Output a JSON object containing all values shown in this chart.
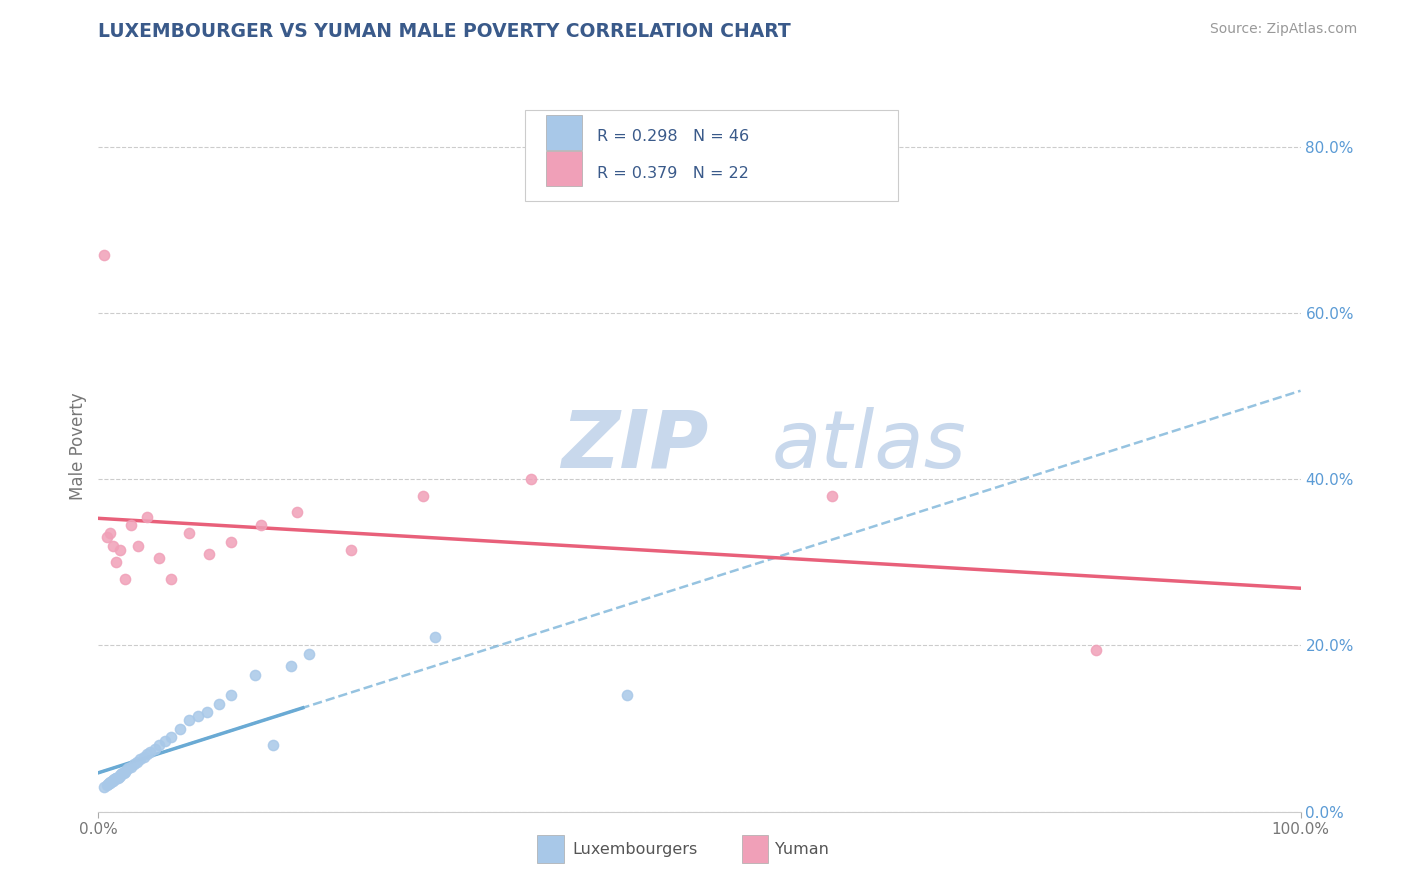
{
  "title": "LUXEMBOURGER VS YUMAN MALE POVERTY CORRELATION CHART",
  "source": "Source: ZipAtlas.com",
  "ylabel": "Male Poverty",
  "legend_labels": [
    "Luxembourgers",
    "Yuman"
  ],
  "r_luxembourger": 0.298,
  "n_luxembourger": 46,
  "r_yuman": 0.379,
  "n_yuman": 22,
  "color_luxembourger": "#a8c8e8",
  "color_yuman": "#f0a0b8",
  "color_line_luxembourger": "#6aaad4",
  "color_line_yuman": "#e8607a",
  "title_color": "#3a5a8a",
  "legend_text_color": "#3a5a8a",
  "right_axis_color": "#5b9bd5",
  "watermark_zip_color": "#c8d8ec",
  "watermark_atlas_color": "#c8d8ec",
  "background_color": "#ffffff",
  "yticks_right": [
    0.0,
    0.2,
    0.4,
    0.6,
    0.8
  ],
  "ytick_labels_right": [
    "0.0%",
    "20.0%",
    "40.0%",
    "60.0%",
    "80.0%"
  ],
  "xlim": [
    0.0,
    1.0
  ],
  "ylim": [
    0.0,
    0.88
  ],
  "lux_x": [
    0.005,
    0.007,
    0.008,
    0.009,
    0.01,
    0.01,
    0.011,
    0.012,
    0.012,
    0.013,
    0.014,
    0.015,
    0.015,
    0.016,
    0.017,
    0.018,
    0.018,
    0.019,
    0.02,
    0.021,
    0.022,
    0.023,
    0.025,
    0.027,
    0.03,
    0.032,
    0.035,
    0.038,
    0.04,
    0.043,
    0.047,
    0.05,
    0.055,
    0.06,
    0.068,
    0.075,
    0.083,
    0.09,
    0.1,
    0.11,
    0.13,
    0.145,
    0.16,
    0.175,
    0.28,
    0.44
  ],
  "lux_y": [
    0.03,
    0.032,
    0.033,
    0.034,
    0.035,
    0.036,
    0.037,
    0.037,
    0.038,
    0.039,
    0.039,
    0.04,
    0.04,
    0.041,
    0.042,
    0.043,
    0.044,
    0.045,
    0.046,
    0.047,
    0.048,
    0.05,
    0.052,
    0.054,
    0.057,
    0.06,
    0.063,
    0.066,
    0.069,
    0.072,
    0.076,
    0.08,
    0.085,
    0.09,
    0.1,
    0.11,
    0.115,
    0.12,
    0.13,
    0.14,
    0.165,
    0.08,
    0.175,
    0.19,
    0.21,
    0.14
  ],
  "yuman_x": [
    0.005,
    0.007,
    0.01,
    0.012,
    0.015,
    0.018,
    0.022,
    0.027,
    0.033,
    0.04,
    0.05,
    0.06,
    0.075,
    0.092,
    0.11,
    0.135,
    0.165,
    0.21,
    0.27,
    0.36,
    0.61,
    0.83
  ],
  "yuman_y": [
    0.67,
    0.33,
    0.335,
    0.32,
    0.3,
    0.315,
    0.28,
    0.345,
    0.32,
    0.355,
    0.305,
    0.28,
    0.335,
    0.31,
    0.325,
    0.345,
    0.36,
    0.315,
    0.38,
    0.4,
    0.38,
    0.195
  ]
}
